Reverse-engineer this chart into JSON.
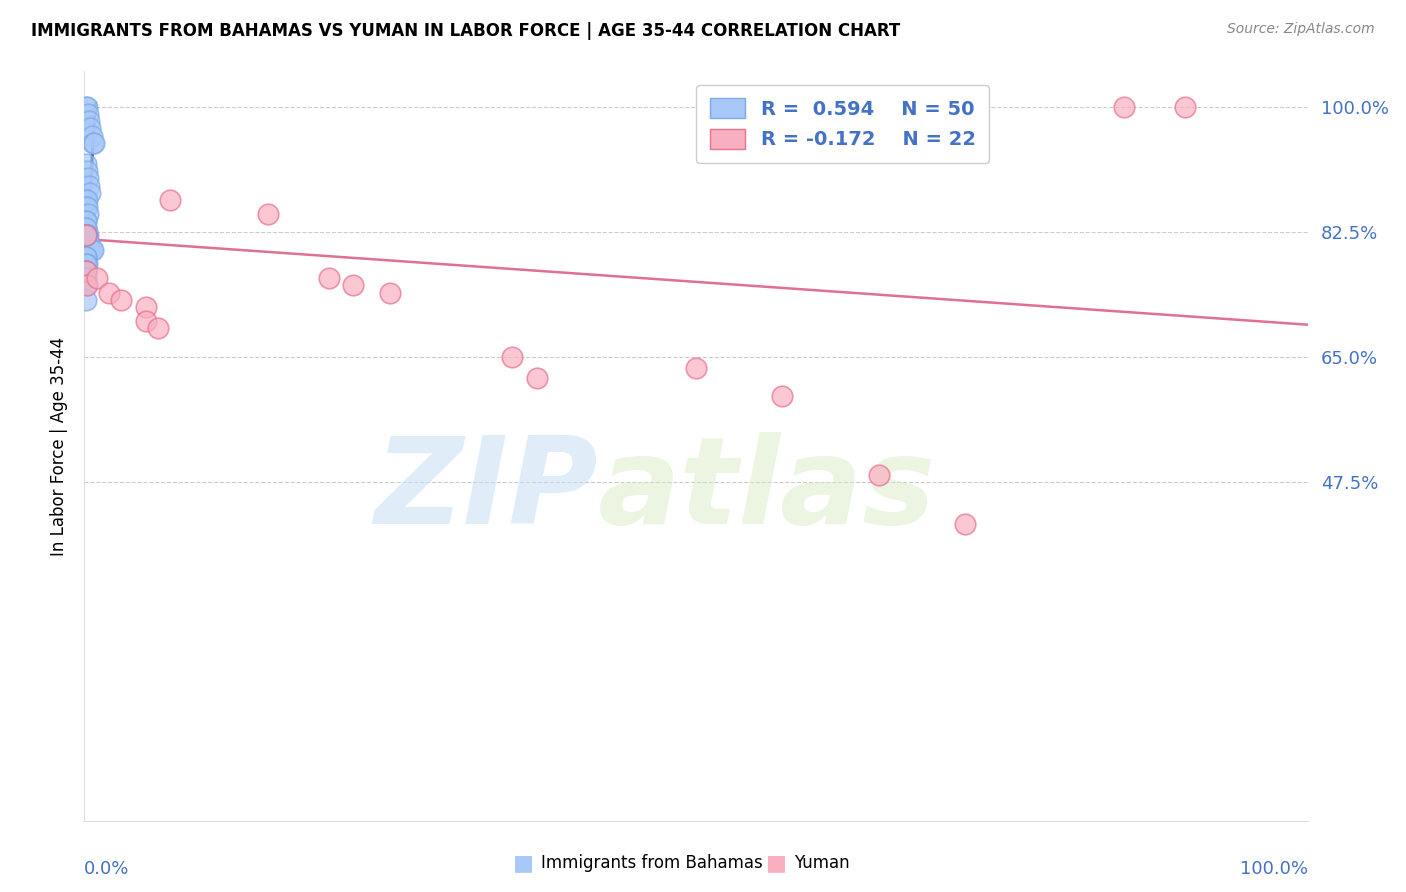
{
  "title": "IMMIGRANTS FROM BAHAMAS VS YUMAN IN LABOR FORCE | AGE 35-44 CORRELATION CHART",
  "source": "Source: ZipAtlas.com",
  "ylabel": "In Labor Force | Age 35-44",
  "ytick_labels": [
    "100.0%",
    "82.5%",
    "65.0%",
    "47.5%"
  ],
  "ytick_values": [
    1.0,
    0.825,
    0.65,
    0.475
  ],
  "xmin": 0.0,
  "xmax": 1.0,
  "ymin": 0.0,
  "ymax": 1.05,
  "blue_R": 0.594,
  "blue_N": 50,
  "pink_R": -0.172,
  "pink_N": 22,
  "blue_color": "#a8c8f8",
  "blue_edge_color": "#7aaae8",
  "blue_line_color": "#1a3a7a",
  "pink_color": "#f8b0c0",
  "pink_edge_color": "#e87090",
  "pink_line_color": "#e07090",
  "legend_label_blue": "Immigrants from Bahamas",
  "legend_label_pink": "Yuman",
  "watermark_zip": "ZIP",
  "watermark_atlas": "atlas",
  "axis_label_color": "#4472c4",
  "blue_scatter_x": [
    0.001,
    0.002,
    0.003,
    0.004,
    0.005,
    0.006,
    0.007,
    0.008,
    0.001,
    0.002,
    0.003,
    0.004,
    0.005,
    0.001,
    0.002,
    0.001,
    0.002,
    0.003,
    0.001,
    0.001,
    0.001,
    0.001,
    0.002,
    0.001,
    0.001,
    0.001,
    0.001,
    0.001,
    0.001,
    0.001,
    0.001,
    0.002,
    0.003,
    0.004,
    0.005,
    0.006,
    0.007,
    0.001,
    0.001,
    0.002,
    0.001,
    0.001,
    0.001,
    0.001,
    0.001,
    0.001,
    0.001,
    0.001,
    0.001,
    0.001
  ],
  "blue_scatter_y": [
    1.0,
    1.0,
    0.99,
    0.98,
    0.97,
    0.96,
    0.95,
    0.95,
    0.92,
    0.91,
    0.9,
    0.89,
    0.88,
    0.87,
    0.87,
    0.86,
    0.86,
    0.85,
    0.84,
    0.84,
    0.83,
    0.83,
    0.82,
    0.82,
    0.82,
    0.82,
    0.82,
    0.82,
    0.82,
    0.82,
    0.82,
    0.82,
    0.82,
    0.81,
    0.8,
    0.8,
    0.8,
    0.79,
    0.79,
    0.78,
    0.78,
    0.77,
    0.77,
    0.77,
    0.76,
    0.75,
    0.73,
    0.82,
    0.82,
    0.82
  ],
  "blue_line_x0": 0.0002,
  "blue_line_x1": 0.009,
  "blue_line_y0": 0.755,
  "blue_line_y1": 1.005,
  "pink_scatter_x": [
    0.001,
    0.001,
    0.002,
    0.01,
    0.02,
    0.03,
    0.05,
    0.05,
    0.06,
    0.07,
    0.15,
    0.2,
    0.22,
    0.25,
    0.35,
    0.37,
    0.5,
    0.57,
    0.65,
    0.72,
    0.85,
    0.9
  ],
  "pink_scatter_y": [
    0.82,
    0.77,
    0.75,
    0.76,
    0.74,
    0.73,
    0.72,
    0.7,
    0.69,
    0.87,
    0.85,
    0.76,
    0.75,
    0.74,
    0.65,
    0.62,
    0.635,
    0.595,
    0.485,
    0.415,
    1.0,
    1.0
  ],
  "pink_line_x0": 0.0,
  "pink_line_x1": 1.0,
  "pink_line_y0": 0.815,
  "pink_line_y1": 0.695
}
